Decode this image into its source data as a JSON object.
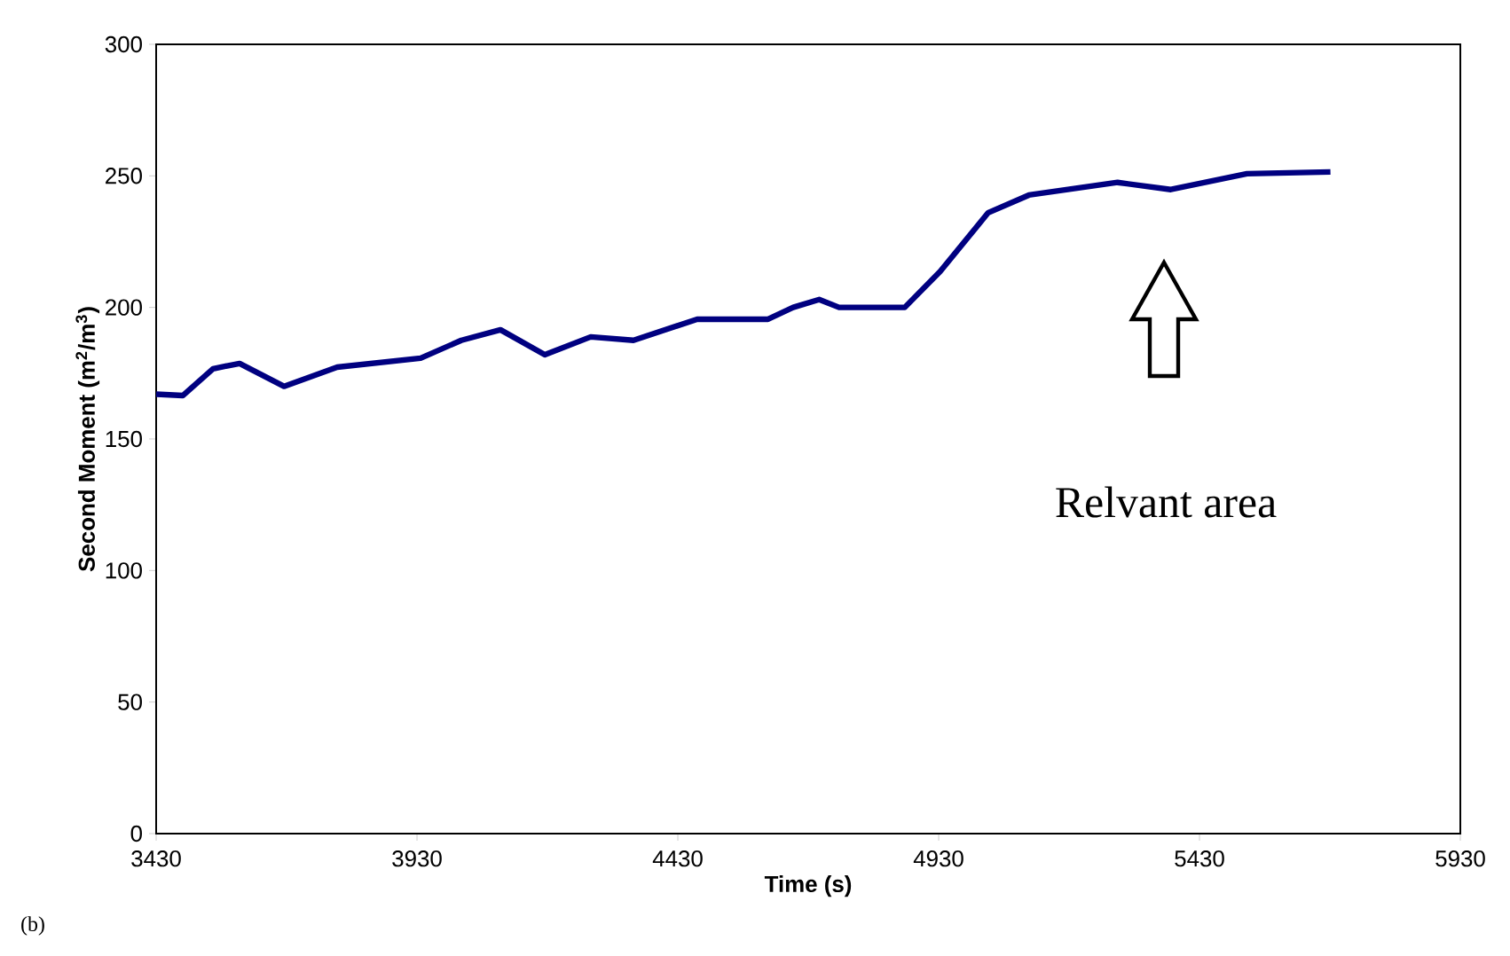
{
  "chart_data": {
    "type": "line",
    "xlabel": "Time (s)",
    "ylabel": "Second Moment (m$^{2}$/m$^{3}$)",
    "x": [
      3430,
      3481,
      3539,
      3590,
      3675,
      3777,
      3937,
      4015,
      4090,
      4175,
      4263,
      4345,
      4467,
      4603,
      4651,
      4701,
      4739,
      4865,
      4933,
      5025,
      5103,
      5273,
      5375,
      5521,
      5681
    ],
    "series": [
      {
        "color": "#000080",
        "values": [
          167,
          166.5,
          176.7,
          178.7,
          170,
          177.3,
          180.7,
          187.5,
          191.5,
          182,
          188.8,
          187.5,
          195.5,
          195.5,
          200,
          203,
          200,
          200,
          213.7,
          236,
          242.7,
          247.5,
          244.8,
          250.8,
          251.5
        ]
      }
    ],
    "xlim": [
      3430,
      5930
    ],
    "xticks": [
      3430,
      3930,
      4430,
      4930,
      5430,
      5930
    ],
    "ylim": [
      0,
      300
    ],
    "yticks": [
      0,
      50,
      100,
      150,
      200,
      250,
      300
    ],
    "grid": false,
    "marker": "none",
    "line_style": "solid",
    "annotations": [
      "Relvant area",
      "(b)"
    ]
  }
}
